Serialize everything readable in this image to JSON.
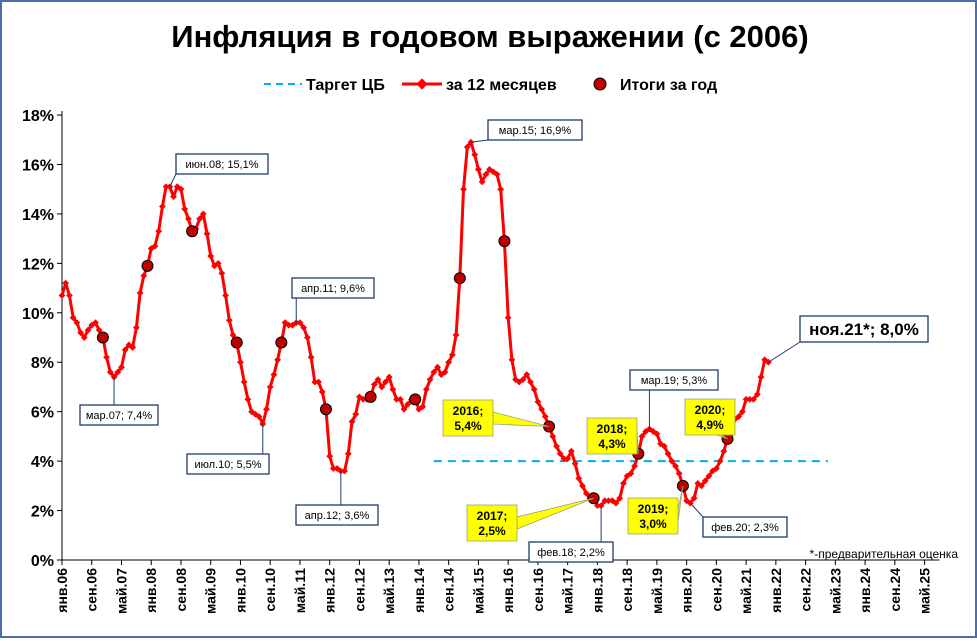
{
  "chart_data": {
    "type": "line",
    "title": "Инфляция в годовом выражении (с 2006)",
    "legend": {
      "placement": "top-center",
      "items": [
        {
          "label": "Таргет ЦБ",
          "style": "dashed",
          "color": "#00b0f0"
        },
        {
          "label": "за 12 месяцев",
          "style": "line-diamond",
          "color": "#ff0000"
        },
        {
          "label": "Итоги за год",
          "style": "dot",
          "color": "#c00000"
        }
      ]
    },
    "yticks": [
      "0%",
      "2%",
      "4%",
      "6%",
      "8%",
      "10%",
      "12%",
      "14%",
      "16%",
      "18%"
    ],
    "ylim": [
      0,
      18
    ],
    "xlim_months": [
      0,
      236
    ],
    "grid": "none",
    "xticks": [
      {
        "m": 0,
        "label": "янв.06"
      },
      {
        "m": 8,
        "label": "сен.06"
      },
      {
        "m": 16,
        "label": "май.07"
      },
      {
        "m": 24,
        "label": "янв.08"
      },
      {
        "m": 32,
        "label": "сен.08"
      },
      {
        "m": 40,
        "label": "май.09"
      },
      {
        "m": 48,
        "label": "янв.10"
      },
      {
        "m": 56,
        "label": "сен.10"
      },
      {
        "m": 64,
        "label": "май.11"
      },
      {
        "m": 72,
        "label": "янв.12"
      },
      {
        "m": 80,
        "label": "сен.12"
      },
      {
        "m": 88,
        "label": "май.13"
      },
      {
        "m": 96,
        "label": "янв.14"
      },
      {
        "m": 104,
        "label": "сен.14"
      },
      {
        "m": 112,
        "label": "май.15"
      },
      {
        "m": 120,
        "label": "янв.16"
      },
      {
        "m": 128,
        "label": "сен.16"
      },
      {
        "m": 136,
        "label": "май.17"
      },
      {
        "m": 144,
        "label": "янв.18"
      },
      {
        "m": 152,
        "label": "сен.18"
      },
      {
        "m": 160,
        "label": "май.19"
      },
      {
        "m": 168,
        "label": "янв.20"
      },
      {
        "m": 176,
        "label": "сен.20"
      },
      {
        "m": 184,
        "label": "май.21"
      },
      {
        "m": 192,
        "label": "янв.22"
      },
      {
        "m": 200,
        "label": "сен.22"
      },
      {
        "m": 208,
        "label": "май.23"
      },
      {
        "m": 216,
        "label": "янв.24"
      },
      {
        "m": 224,
        "label": "сен.24"
      },
      {
        "m": 232,
        "label": "май.25"
      }
    ],
    "target": {
      "label": "Таргет ЦБ",
      "value": 4.0,
      "from_month": 100,
      "to_month": 206
    },
    "series": [
      {
        "name": "за 12 месяцев",
        "color": "#ff0000",
        "values": [
          10.7,
          11.2,
          10.7,
          9.8,
          9.6,
          9.2,
          9.0,
          9.3,
          9.5,
          9.6,
          9.3,
          9.0,
          8.2,
          7.6,
          7.4,
          7.6,
          7.8,
          8.5,
          8.7,
          8.6,
          9.4,
          10.8,
          11.5,
          11.9,
          12.6,
          12.7,
          13.3,
          14.3,
          15.1,
          15.1,
          14.7,
          15.1,
          15.0,
          14.2,
          13.8,
          13.3,
          13.4,
          13.8,
          14.0,
          13.2,
          12.3,
          11.9,
          12.0,
          11.6,
          10.7,
          9.7,
          9.1,
          8.8,
          8.0,
          7.2,
          6.5,
          6.0,
          5.9,
          5.8,
          5.5,
          6.1,
          7.0,
          7.5,
          8.1,
          8.8,
          9.6,
          9.5,
          9.5,
          9.6,
          9.6,
          9.4,
          9.0,
          8.2,
          7.2,
          7.2,
          6.8,
          6.1,
          4.2,
          3.7,
          3.7,
          3.6,
          3.6,
          4.3,
          5.6,
          5.9,
          6.6,
          6.5,
          6.5,
          6.6,
          7.1,
          7.3,
          7.0,
          7.2,
          7.4,
          6.9,
          6.5,
          6.5,
          6.1,
          6.3,
          6.5,
          6.5,
          6.1,
          6.2,
          6.9,
          7.3,
          7.6,
          7.8,
          7.5,
          7.6,
          8.0,
          8.3,
          9.1,
          11.4,
          15.0,
          16.7,
          16.9,
          16.4,
          15.8,
          15.3,
          15.6,
          15.8,
          15.7,
          15.6,
          15.0,
          12.9,
          9.8,
          8.1,
          7.3,
          7.2,
          7.3,
          7.5,
          7.2,
          6.9,
          6.4,
          6.1,
          5.8,
          5.4,
          5.0,
          4.6,
          4.3,
          4.1,
          4.1,
          4.4,
          3.9,
          3.3,
          3.0,
          2.7,
          2.5,
          2.5,
          2.2,
          2.2,
          2.4,
          2.4,
          2.4,
          2.3,
          2.5,
          3.1,
          3.4,
          3.5,
          3.8,
          4.3,
          5.0,
          5.2,
          5.3,
          5.2,
          5.1,
          4.7,
          4.6,
          4.3,
          4.0,
          3.8,
          3.5,
          3.0,
          2.4,
          2.3,
          2.5,
          3.1,
          3.0,
          3.2,
          3.4,
          3.6,
          3.7,
          4.0,
          4.4,
          4.9,
          5.2,
          5.7,
          5.8,
          6.0,
          6.5,
          6.5,
          6.5,
          6.7,
          7.4,
          8.1,
          8.0
        ]
      },
      {
        "name": "Итоги за год",
        "color": "#c00000",
        "points": [
          {
            "month": 11,
            "value": 9.0
          },
          {
            "month": 23,
            "value": 11.9
          },
          {
            "month": 35,
            "value": 13.3
          },
          {
            "month": 47,
            "value": 8.8
          },
          {
            "month": 59,
            "value": 8.8
          },
          {
            "month": 71,
            "value": 6.1
          },
          {
            "month": 83,
            "value": 6.6
          },
          {
            "month": 95,
            "value": 6.5
          },
          {
            "month": 107,
            "value": 11.4
          },
          {
            "month": 119,
            "value": 12.9
          },
          {
            "month": 131,
            "value": 5.4
          },
          {
            "month": 143,
            "value": 2.5
          },
          {
            "month": 155,
            "value": 4.3
          },
          {
            "month": 167,
            "value": 3.0
          },
          {
            "month": 179,
            "value": 4.9
          }
        ]
      }
    ],
    "annotations": {
      "callouts": [
        {
          "text": "мар.07; 7,4%",
          "month": 14,
          "value": 7.4,
          "anchor": "below"
        },
        {
          "text": "июн.08; 15,1%",
          "month": 29,
          "value": 15.1,
          "anchor": "above"
        },
        {
          "text": "июл.10; 5,5%",
          "month": 54,
          "value": 5.5,
          "anchor": "below"
        },
        {
          "text": "апр.11; 9,6%",
          "month": 63,
          "value": 9.6,
          "anchor": "above"
        },
        {
          "text": "апр.12; 3,6%",
          "month": 75,
          "value": 3.6,
          "anchor": "below"
        },
        {
          "text": "мар.15; 16,9%",
          "month": 110,
          "value": 16.9,
          "anchor": "above"
        },
        {
          "text": "фев.18; 2,2%",
          "month": 145,
          "value": 2.2,
          "anchor": "below"
        },
        {
          "text": "мар.19; 5,3%",
          "month": 158,
          "value": 5.3,
          "anchor": "above"
        },
        {
          "text": "фев.20; 2,3%",
          "month": 169,
          "value": 2.3,
          "anchor": "below"
        },
        {
          "text": "ноя.21*; 8,0%",
          "month": 190,
          "value": 8.0,
          "anchor": "right",
          "emphasis": true
        }
      ],
      "year_labels": [
        {
          "lines": [
            "2016;",
            "5,4%"
          ],
          "month": 131,
          "value": 5.4
        },
        {
          "lines": [
            "2017;",
            "2,5%"
          ],
          "month": 143,
          "value": 2.5
        },
        {
          "lines": [
            "2018;",
            "4,3%"
          ],
          "month": 155,
          "value": 4.3
        },
        {
          "lines": [
            "2019;",
            "3,0%"
          ],
          "month": 167,
          "value": 3.0
        },
        {
          "lines": [
            "2020;",
            "4,9%"
          ],
          "month": 179,
          "value": 4.9
        }
      ],
      "footnote": "*-предварительная оценка"
    }
  }
}
